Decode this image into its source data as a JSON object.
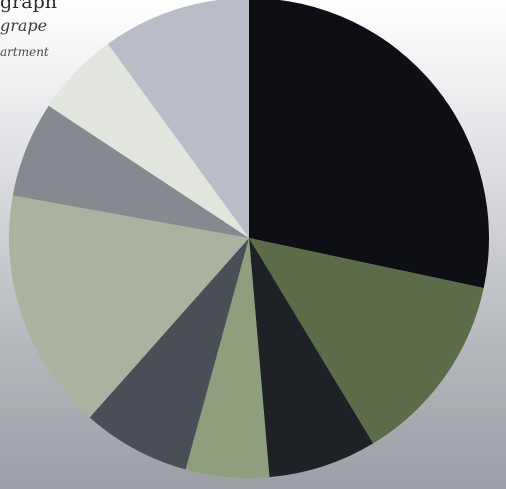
{
  "chart_data": {
    "type": "pie",
    "title_fragment": "graph",
    "subtitle_fragment_1": "grape",
    "subtitle_fragment_2": "artment",
    "values": [
      30.3,
      13.9,
      7.8,
      6.0,
      7.8,
      17.4,
      6.9,
      6.1,
      10.7
    ],
    "colors": [
      "#0d0f14",
      "#5c6b48",
      "#1e2227",
      "#8f9e7d",
      "#4a4f57",
      "#a9b39f",
      "#858990",
      "#e3e6df",
      "#babdc7"
    ],
    "legend": false
  }
}
